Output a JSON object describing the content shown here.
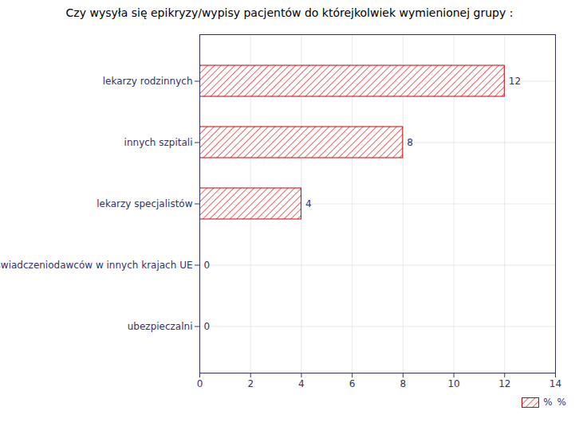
{
  "chart_data": {
    "type": "bar",
    "orientation": "horizontal",
    "title": "Czy wysyła się epikryzy/wypisy pacjentów do którejkolwiek  wymienionej grupy :",
    "categories": [
      "lekarzy rodzinnych",
      "innych szpitali",
      "lekarzy specjalistów",
      "świadczeniodawców w innych krajach UE",
      "ubezpieczalni"
    ],
    "series": [
      {
        "name": "%",
        "color": "#cc0000",
        "values": [
          12,
          8,
          4,
          0,
          0
        ]
      }
    ],
    "xlim": [
      0,
      14
    ],
    "xticks": [
      0,
      2,
      4,
      6,
      8,
      10,
      12,
      14
    ],
    "grid": true,
    "legend": "lower right",
    "data_labels": true,
    "annotations": [
      "%"
    ]
  }
}
